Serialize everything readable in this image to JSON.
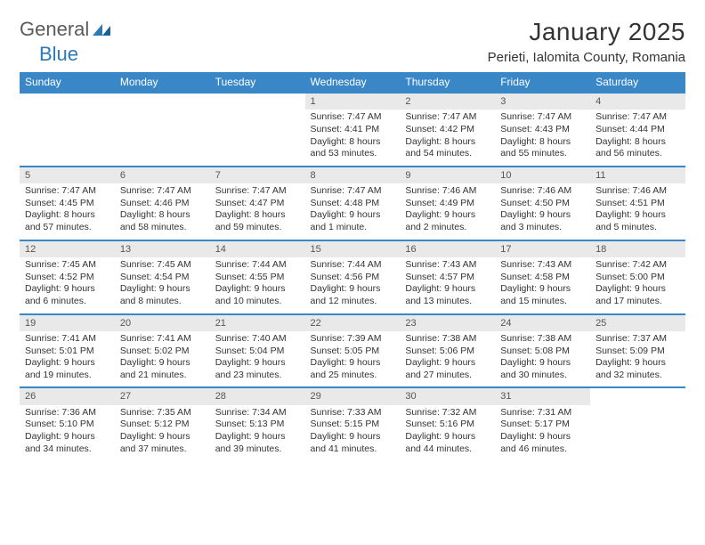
{
  "logo": {
    "text1": "General",
    "text2": "Blue"
  },
  "title": "January 2025",
  "location": "Perieti, Ialomita County, Romania",
  "colors": {
    "header_bg": "#3a87c7",
    "header_text": "#ffffff",
    "daynum_bg": "#e9e9e9",
    "row_divider": "#3a87c7",
    "logo_gray": "#5a5a5a",
    "logo_blue": "#2a7ab8",
    "body_text": "#333333",
    "background": "#ffffff"
  },
  "weekdays": [
    "Sunday",
    "Monday",
    "Tuesday",
    "Wednesday",
    "Thursday",
    "Friday",
    "Saturday"
  ],
  "weeks": [
    [
      null,
      null,
      null,
      {
        "n": "1",
        "sr": "7:47 AM",
        "ss": "4:41 PM",
        "dl": "8 hours and 53 minutes."
      },
      {
        "n": "2",
        "sr": "7:47 AM",
        "ss": "4:42 PM",
        "dl": "8 hours and 54 minutes."
      },
      {
        "n": "3",
        "sr": "7:47 AM",
        "ss": "4:43 PM",
        "dl": "8 hours and 55 minutes."
      },
      {
        "n": "4",
        "sr": "7:47 AM",
        "ss": "4:44 PM",
        "dl": "8 hours and 56 minutes."
      }
    ],
    [
      {
        "n": "5",
        "sr": "7:47 AM",
        "ss": "4:45 PM",
        "dl": "8 hours and 57 minutes."
      },
      {
        "n": "6",
        "sr": "7:47 AM",
        "ss": "4:46 PM",
        "dl": "8 hours and 58 minutes."
      },
      {
        "n": "7",
        "sr": "7:47 AM",
        "ss": "4:47 PM",
        "dl": "8 hours and 59 minutes."
      },
      {
        "n": "8",
        "sr": "7:47 AM",
        "ss": "4:48 PM",
        "dl": "9 hours and 1 minute."
      },
      {
        "n": "9",
        "sr": "7:46 AM",
        "ss": "4:49 PM",
        "dl": "9 hours and 2 minutes."
      },
      {
        "n": "10",
        "sr": "7:46 AM",
        "ss": "4:50 PM",
        "dl": "9 hours and 3 minutes."
      },
      {
        "n": "11",
        "sr": "7:46 AM",
        "ss": "4:51 PM",
        "dl": "9 hours and 5 minutes."
      }
    ],
    [
      {
        "n": "12",
        "sr": "7:45 AM",
        "ss": "4:52 PM",
        "dl": "9 hours and 6 minutes."
      },
      {
        "n": "13",
        "sr": "7:45 AM",
        "ss": "4:54 PM",
        "dl": "9 hours and 8 minutes."
      },
      {
        "n": "14",
        "sr": "7:44 AM",
        "ss": "4:55 PM",
        "dl": "9 hours and 10 minutes."
      },
      {
        "n": "15",
        "sr": "7:44 AM",
        "ss": "4:56 PM",
        "dl": "9 hours and 12 minutes."
      },
      {
        "n": "16",
        "sr": "7:43 AM",
        "ss": "4:57 PM",
        "dl": "9 hours and 13 minutes."
      },
      {
        "n": "17",
        "sr": "7:43 AM",
        "ss": "4:58 PM",
        "dl": "9 hours and 15 minutes."
      },
      {
        "n": "18",
        "sr": "7:42 AM",
        "ss": "5:00 PM",
        "dl": "9 hours and 17 minutes."
      }
    ],
    [
      {
        "n": "19",
        "sr": "7:41 AM",
        "ss": "5:01 PM",
        "dl": "9 hours and 19 minutes."
      },
      {
        "n": "20",
        "sr": "7:41 AM",
        "ss": "5:02 PM",
        "dl": "9 hours and 21 minutes."
      },
      {
        "n": "21",
        "sr": "7:40 AM",
        "ss": "5:04 PM",
        "dl": "9 hours and 23 minutes."
      },
      {
        "n": "22",
        "sr": "7:39 AM",
        "ss": "5:05 PM",
        "dl": "9 hours and 25 minutes."
      },
      {
        "n": "23",
        "sr": "7:38 AM",
        "ss": "5:06 PM",
        "dl": "9 hours and 27 minutes."
      },
      {
        "n": "24",
        "sr": "7:38 AM",
        "ss": "5:08 PM",
        "dl": "9 hours and 30 minutes."
      },
      {
        "n": "25",
        "sr": "7:37 AM",
        "ss": "5:09 PM",
        "dl": "9 hours and 32 minutes."
      }
    ],
    [
      {
        "n": "26",
        "sr": "7:36 AM",
        "ss": "5:10 PM",
        "dl": "9 hours and 34 minutes."
      },
      {
        "n": "27",
        "sr": "7:35 AM",
        "ss": "5:12 PM",
        "dl": "9 hours and 37 minutes."
      },
      {
        "n": "28",
        "sr": "7:34 AM",
        "ss": "5:13 PM",
        "dl": "9 hours and 39 minutes."
      },
      {
        "n": "29",
        "sr": "7:33 AM",
        "ss": "5:15 PM",
        "dl": "9 hours and 41 minutes."
      },
      {
        "n": "30",
        "sr": "7:32 AM",
        "ss": "5:16 PM",
        "dl": "9 hours and 44 minutes."
      },
      {
        "n": "31",
        "sr": "7:31 AM",
        "ss": "5:17 PM",
        "dl": "9 hours and 46 minutes."
      },
      null
    ]
  ],
  "labels": {
    "sunrise": "Sunrise:",
    "sunset": "Sunset:",
    "daylight": "Daylight:"
  }
}
